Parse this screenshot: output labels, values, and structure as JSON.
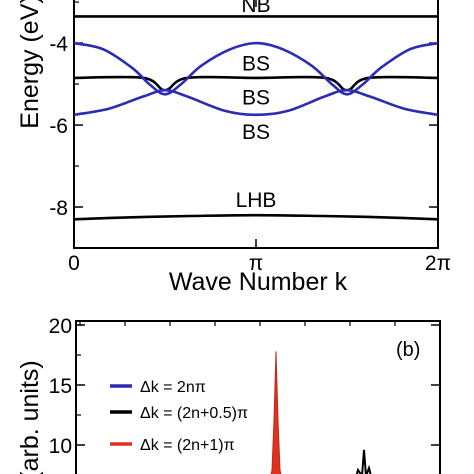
{
  "chart_data": [
    {
      "type": "line",
      "panel": "a",
      "xlabel": "Wave Number k",
      "ylabel": "Energy (eV)",
      "xlim": [
        0,
        6.2832
      ],
      "ylim": [
        -9,
        -2.9
      ],
      "x_ticks": [
        {
          "value": 0,
          "label": "0"
        },
        {
          "value": 3.1416,
          "label": "π"
        },
        {
          "value": 6.2832,
          "label": "2π"
        }
      ],
      "y_ticks": [
        {
          "value": -4,
          "label": "-4"
        },
        {
          "value": -6,
          "label": "-6"
        },
        {
          "value": -8,
          "label": "-8"
        }
      ],
      "series": [
        {
          "name": "NB",
          "color": "#000000",
          "x": [
            0,
            6.2832
          ],
          "y": [
            -3.35,
            -3.35
          ]
        },
        {
          "name": "BS",
          "color": "#000000",
          "x": [
            0,
            1.2,
            1.57,
            1.95,
            3.1416,
            4.34,
            4.71,
            5.08,
            6.2832
          ],
          "y": [
            -4.85,
            -4.85,
            -5.15,
            -4.85,
            -4.85,
            -4.85,
            -5.15,
            -4.85,
            -4.85
          ]
        },
        {
          "name": "BS",
          "color": "#2b2bb5",
          "x": [
            0,
            0.5,
            1.0,
            1.3,
            1.57,
            1.85,
            2.2,
            2.7,
            3.1416,
            3.6,
            4.1,
            4.45,
            4.71,
            4.99,
            5.3,
            5.8,
            6.2832
          ],
          "y": [
            -4.0,
            -4.15,
            -4.6,
            -5.0,
            -5.25,
            -5.0,
            -4.55,
            -4.15,
            -4.0,
            -4.15,
            -4.55,
            -5.0,
            -5.25,
            -5.0,
            -4.6,
            -4.15,
            -4.0
          ]
        },
        {
          "name": "BS",
          "color": "#2b2bb5",
          "x": [
            0,
            0.6,
            1.2,
            1.57,
            1.95,
            2.6,
            3.1416,
            3.7,
            4.33,
            4.71,
            5.1,
            5.7,
            6.2832
          ],
          "y": [
            -5.75,
            -5.6,
            -5.3,
            -5.15,
            -5.3,
            -5.65,
            -5.75,
            -5.65,
            -5.3,
            -5.15,
            -5.3,
            -5.6,
            -5.75
          ]
        },
        {
          "name": "LHB",
          "color": "#000000",
          "x": [
            0,
            1.0,
            2.0,
            3.1416,
            4.3,
            5.3,
            6.2832
          ],
          "y": [
            -8.3,
            -8.25,
            -8.22,
            -8.2,
            -8.22,
            -8.25,
            -8.3
          ]
        }
      ],
      "annotations": [
        {
          "text": "NB",
          "x": 3.1416,
          "y": -3.05
        },
        {
          "text": "BS",
          "x": 3.1416,
          "y": -4.47
        },
        {
          "text": "BS",
          "x": 3.1416,
          "y": -5.3
        },
        {
          "text": "BS",
          "x": 3.1416,
          "y": -6.15
        },
        {
          "text": "LHB",
          "x": 3.1416,
          "y": -7.8
        }
      ]
    },
    {
      "type": "line",
      "panel": "b",
      "panel_label": "(b)",
      "ylabel": "(arb. units)",
      "ylim": [
        5,
        20
      ],
      "y_ticks": [
        {
          "value": 20,
          "label": "20"
        },
        {
          "value": 15,
          "label": "15"
        },
        {
          "value": 10,
          "label": "10"
        }
      ],
      "legend_position": "left",
      "legend": [
        {
          "label": "Δk = 2nπ",
          "color": "#2b2bb5"
        },
        {
          "label": "Δk = (2n+0.5)π",
          "color": "#000000"
        },
        {
          "label": "Δk = (2n+1)π",
          "color": "#e0301e"
        }
      ],
      "visible_peaks": [
        {
          "series": "Δk = (2n+1)π",
          "y": 17.8
        },
        {
          "series": "Δk = (2n+0.5)π",
          "y": 9.6
        }
      ]
    }
  ]
}
